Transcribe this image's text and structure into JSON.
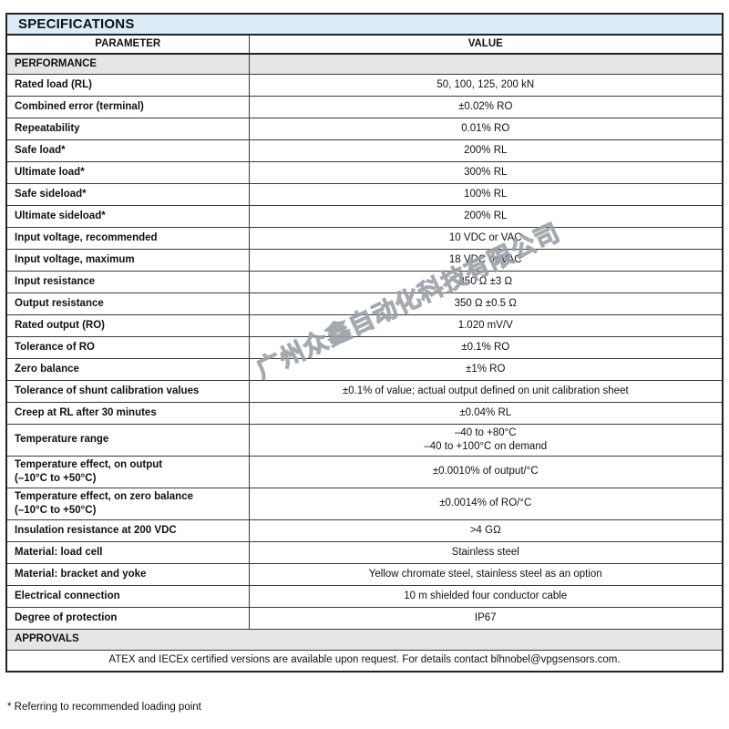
{
  "watermark": "广州众鑫自动化科技有限公司",
  "colors": {
    "title_bar_bg": "#dbecf7",
    "section_bar_bg": "#e6e6e6",
    "border": "#222222",
    "text": "#111111",
    "watermark_gray": "#9ca3a9"
  },
  "table": {
    "title": "SPECIFICATIONS",
    "columns": {
      "parameter": "PARAMETER",
      "value": "VALUE"
    },
    "sections": [
      {
        "heading": "PERFORMANCE",
        "rows": [
          {
            "parameter": [
              "Rated load (RL)"
            ],
            "value": [
              "50, 100, 125, 200 kN"
            ]
          },
          {
            "parameter": [
              "Combined error (terminal)"
            ],
            "value": [
              "±0.02% RO"
            ]
          },
          {
            "parameter": [
              "Repeatability"
            ],
            "value": [
              "0.01% RO"
            ]
          },
          {
            "parameter": [
              "Safe load*"
            ],
            "value": [
              "200% RL"
            ]
          },
          {
            "parameter": [
              "Ultimate load*"
            ],
            "value": [
              "300% RL"
            ]
          },
          {
            "parameter": [
              "Safe sideload*"
            ],
            "value": [
              "100% RL"
            ]
          },
          {
            "parameter": [
              "Ultimate sideload*"
            ],
            "value": [
              "200% RL"
            ]
          },
          {
            "parameter": [
              "Input voltage, recommended"
            ],
            "value": [
              "10 VDC or VAC"
            ]
          },
          {
            "parameter": [
              "Input voltage, maximum"
            ],
            "value": [
              "18 VDC or VAC"
            ]
          },
          {
            "parameter": [
              "Input resistance"
            ],
            "value": [
              "350 Ω ±3 Ω"
            ]
          },
          {
            "parameter": [
              "Output resistance"
            ],
            "value": [
              "350 Ω ±0.5 Ω"
            ]
          },
          {
            "parameter": [
              "Rated output (RO)"
            ],
            "value": [
              "1.020 mV/V"
            ]
          },
          {
            "parameter": [
              "Tolerance of RO"
            ],
            "value": [
              "±0.1% RO"
            ]
          },
          {
            "parameter": [
              "Zero balance"
            ],
            "value": [
              "±1% RO"
            ]
          },
          {
            "parameter": [
              "Tolerance of shunt calibration values"
            ],
            "value": [
              "±0.1% of value; actual output defined on unit calibration sheet"
            ]
          },
          {
            "parameter": [
              "Creep at RL after 30 minutes"
            ],
            "value": [
              "±0.04% RL"
            ]
          },
          {
            "parameter": [
              "Temperature range"
            ],
            "value": [
              "–40 to +80°C",
              "–40 to +100°C on demand"
            ]
          },
          {
            "parameter": [
              "Temperature effect, on output",
              "(–10°C to +50°C)"
            ],
            "value": [
              "±0.0010% of output/°C"
            ]
          },
          {
            "parameter": [
              "Temperature effect, on zero balance",
              "(–10°C to +50°C)"
            ],
            "value": [
              "±0.0014% of RO/°C"
            ]
          },
          {
            "parameter": [
              "Insulation resistance at 200 VDC"
            ],
            "value": [
              ">4 GΩ"
            ]
          },
          {
            "parameter": [
              "Material: load cell"
            ],
            "value": [
              "Stainless steel"
            ]
          },
          {
            "parameter": [
              "Material: bracket and yoke"
            ],
            "value": [
              "Yellow chromate steel, stainless steel as an option"
            ]
          },
          {
            "parameter": [
              "Electrical connection"
            ],
            "value": [
              "10 m shielded four conductor cable"
            ]
          },
          {
            "parameter": [
              "Degree of protection"
            ],
            "value": [
              "IP67"
            ]
          }
        ]
      },
      {
        "heading": "APPROVALS",
        "note": "ATEX and IECEx certified versions are available upon request. For details contact blhnobel@vpgsensors.com."
      }
    ],
    "footnote": "* Referring to recommended loading point"
  }
}
